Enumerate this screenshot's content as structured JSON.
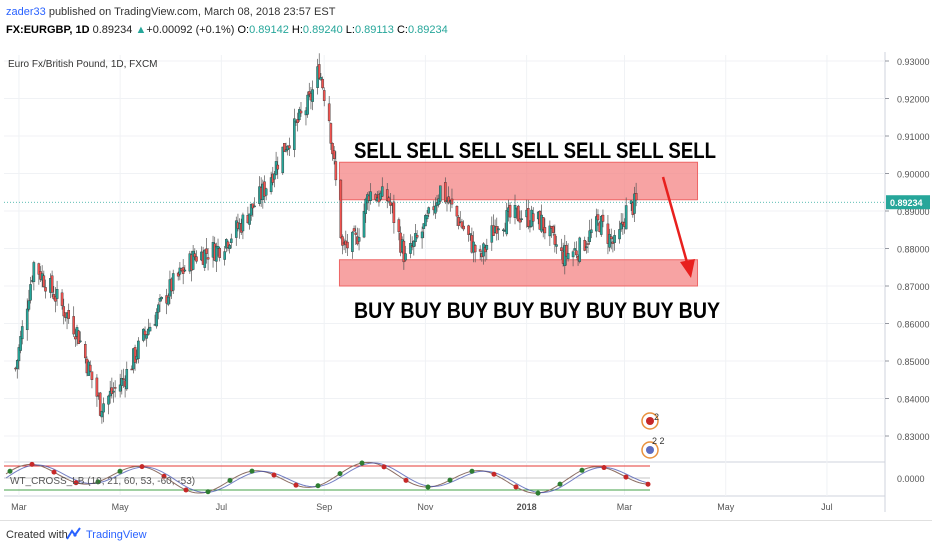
{
  "header": {
    "author": "zader33",
    "published_text": " published on TradingView.com, March 08, 2018 23:57 EST",
    "symbol": "FX:EURGBP, 1D",
    "price": "0.89234",
    "change_arrow": "▲",
    "change": "+0.00092 (+0.1%)",
    "o_label": "O:",
    "o_val": "0.89142",
    "h_label": "H:",
    "h_val": "0.89240",
    "l_label": "L:",
    "l_val": "0.89113",
    "c_label": "C:",
    "c_val": "0.89234"
  },
  "footer": {
    "created_label": "Created with",
    "brand": "TradingView"
  },
  "colors": {
    "up": "#26a69a",
    "down": "#ef5350",
    "accent": "#2962ff",
    "zone": "#f48484",
    "arrow": "#e8201e",
    "last_price_tag": "#26a69a"
  },
  "chart_data": {
    "type": "candlestick",
    "title": "Euro Fx/British Pound, 1D, FXCM",
    "y_ticks": [
      "0.93000",
      "0.92000",
      "0.91000",
      "0.90000",
      "0.89000",
      "0.88000",
      "0.87000",
      "0.86000",
      "0.85000",
      "0.84000",
      "0.83000"
    ],
    "ylim": [
      0.822,
      0.934
    ],
    "x_ticks": [
      "Mar",
      "May",
      "Jul",
      "Sep",
      "Nov",
      "2018",
      "Mar",
      "May",
      "Jul"
    ],
    "last_price": "0.89234",
    "close_path": [
      [
        "2017-02-27",
        0.848
      ],
      [
        "2017-03-10",
        0.876
      ],
      [
        "2017-03-22",
        0.868
      ],
      [
        "2017-04-05",
        0.858
      ],
      [
        "2017-04-19",
        0.838
      ],
      [
        "2017-05-03",
        0.845
      ],
      [
        "2017-05-17",
        0.858
      ],
      [
        "2017-06-01",
        0.87
      ],
      [
        "2017-06-15",
        0.878
      ],
      [
        "2017-06-29",
        0.88
      ],
      [
        "2017-07-12",
        0.886
      ],
      [
        "2017-07-26",
        0.895
      ],
      [
        "2017-08-09",
        0.908
      ],
      [
        "2017-08-23",
        0.919
      ],
      [
        "2017-08-29",
        0.928
      ],
      [
        "2017-09-04",
        0.915
      ],
      [
        "2017-09-12",
        0.88
      ],
      [
        "2017-09-20",
        0.882
      ],
      [
        "2017-09-28",
        0.895
      ],
      [
        "2017-10-10",
        0.893
      ],
      [
        "2017-10-20",
        0.877
      ],
      [
        "2017-11-01",
        0.886
      ],
      [
        "2017-11-10",
        0.896
      ],
      [
        "2017-11-22",
        0.887
      ],
      [
        "2017-12-04",
        0.877
      ],
      [
        "2017-12-14",
        0.887
      ],
      [
        "2017-12-28",
        0.889
      ],
      [
        "2018-01-10",
        0.887
      ],
      [
        "2018-01-22",
        0.878
      ],
      [
        "2018-02-02",
        0.88
      ],
      [
        "2018-02-14",
        0.887
      ],
      [
        "2018-02-24",
        0.88
      ],
      [
        "2018-03-02",
        0.89
      ],
      [
        "2018-03-08",
        0.892
      ]
    ],
    "annotations": {
      "sell_zone": [
        0.893,
        0.903
      ],
      "buy_zone": [
        0.87,
        0.877
      ],
      "sell_text": "SELL SELL SELL SELL SELL SELL SELL",
      "buy_text": "BUY BUY BUY BUY BUY BUY BUY BUY"
    },
    "oscillator": {
      "label": "WT_CROSS_LB (10, 21, 60, 53, -60, -53)",
      "y_tick": "0.0000"
    },
    "event_badges": [
      "2",
      "2 2"
    ]
  }
}
